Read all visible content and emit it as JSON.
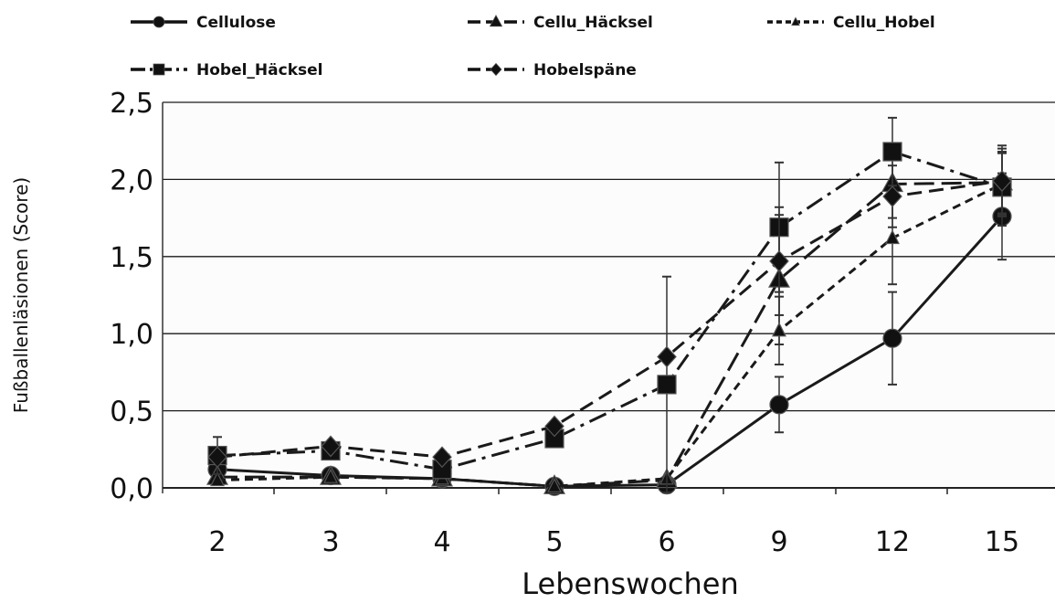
{
  "chart_data": {
    "type": "line",
    "title": "",
    "xlabel": "Lebenswochen",
    "ylabel": "Fußballenläsionen (Score)",
    "categories": [
      "2",
      "3",
      "4",
      "5",
      "6",
      "9",
      "12",
      "15"
    ],
    "y_ticks": [
      "0,0",
      "0,5",
      "1,0",
      "1,5",
      "2,0",
      "2,5"
    ],
    "ylim": [
      0,
      2.5
    ],
    "grid": "horizontal",
    "legend_position": "top",
    "series": [
      {
        "name": "Cellulose",
        "marker": "circle",
        "dash": "solid",
        "values": [
          0.12,
          0.08,
          0.06,
          0.01,
          0.02,
          0.54,
          0.97,
          1.76
        ],
        "error": [
          0,
          0,
          0,
          0,
          0,
          0.18,
          0.3,
          0.28
        ]
      },
      {
        "name": "Cellu_Häcksel",
        "marker": "triangle",
        "dash": "long-dash",
        "values": [
          0.07,
          0.07,
          0.06,
          0.01,
          0.05,
          1.35,
          1.97,
          1.98
        ],
        "error": [
          0,
          0,
          0,
          0,
          0,
          0.42,
          0.22,
          0.2
        ]
      },
      {
        "name": "Cellu_Hobel",
        "marker": "small-triangle",
        "dash": "short-dash",
        "values": [
          0.05,
          0.07,
          0.06,
          0.01,
          0.06,
          1.02,
          1.62,
          1.97
        ],
        "error": [
          0,
          0,
          0,
          0,
          0,
          0.22,
          0.3,
          0.2
        ]
      },
      {
        "name": "Hobel_Häcksel",
        "marker": "square",
        "dash": "dash-dot",
        "values": [
          0.21,
          0.24,
          0.12,
          0.32,
          0.67,
          1.69,
          2.18,
          1.95
        ],
        "error": [
          0.12,
          0,
          0,
          0,
          0.7,
          0.42,
          0.22,
          0.25
        ]
      },
      {
        "name": "Hobelspäne",
        "marker": "diamond",
        "dash": "dash",
        "values": [
          0.2,
          0.27,
          0.2,
          0.4,
          0.85,
          1.47,
          1.89,
          1.99
        ],
        "error": [
          0,
          0,
          0,
          0,
          0,
          0.35,
          0.2,
          0.23
        ]
      }
    ]
  }
}
